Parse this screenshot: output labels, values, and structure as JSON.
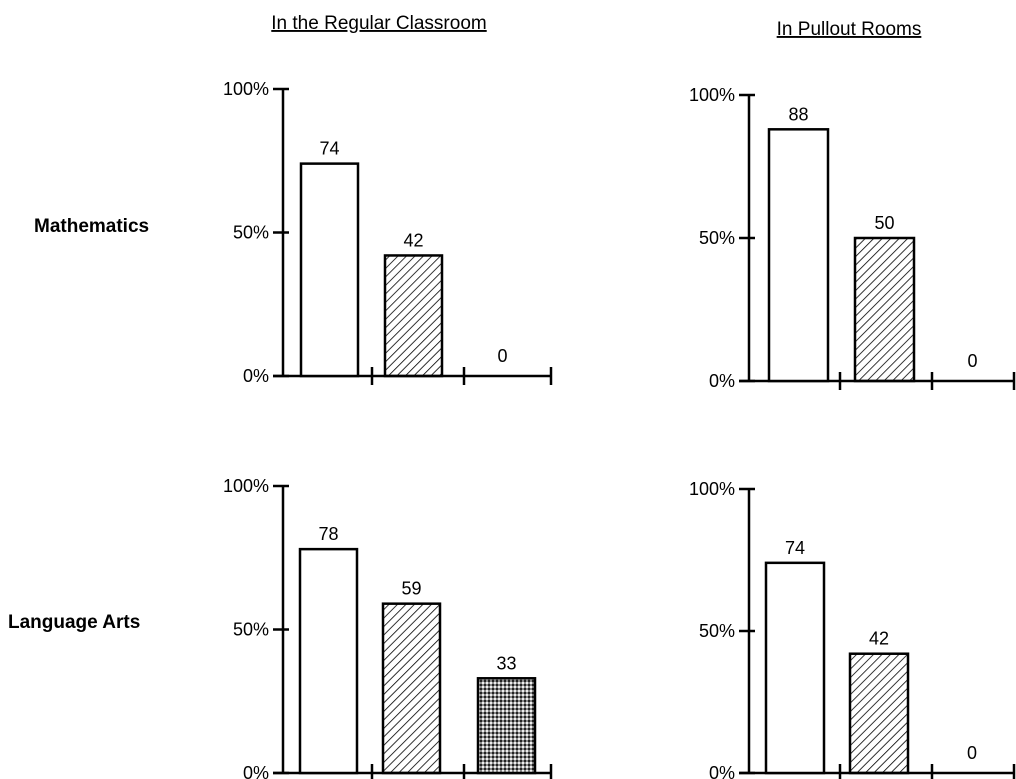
{
  "column_headers": [
    "In the Regular Classroom",
    "In Pullout Rooms"
  ],
  "row_labels": [
    "Mathematics",
    "Language Arts"
  ],
  "chart_data": [
    {
      "type": "bar",
      "subject": "Mathematics",
      "setting": "In the Regular Classroom",
      "yticks": [
        "0%",
        "50%",
        "100%"
      ],
      "ylim": [
        0,
        100
      ],
      "values": [
        74,
        42,
        0
      ],
      "value_labels": [
        "74",
        "42",
        "0"
      ],
      "patterns": [
        "white",
        "hatch",
        "dots"
      ]
    },
    {
      "type": "bar",
      "subject": "Mathematics",
      "setting": "In Pullout Rooms",
      "yticks": [
        "0%",
        "50%",
        "100%"
      ],
      "ylim": [
        0,
        100
      ],
      "values": [
        88,
        50,
        0
      ],
      "value_labels": [
        "88",
        "50",
        "0"
      ],
      "patterns": [
        "white",
        "hatch",
        "dots"
      ]
    },
    {
      "type": "bar",
      "subject": "Language Arts",
      "setting": "In the Regular Classroom",
      "yticks": [
        "0%",
        "50%",
        "100%"
      ],
      "ylim": [
        0,
        100
      ],
      "values": [
        78,
        59,
        33
      ],
      "value_labels": [
        "78",
        "59",
        "33"
      ],
      "patterns": [
        "white",
        "hatch",
        "dots"
      ]
    },
    {
      "type": "bar",
      "subject": "Language Arts",
      "setting": "In Pullout Rooms",
      "yticks": [
        "0%",
        "50%",
        "100%"
      ],
      "ylim": [
        0,
        100
      ],
      "values": [
        74,
        42,
        0
      ],
      "value_labels": [
        "74",
        "42",
        "0"
      ],
      "patterns": [
        "white",
        "hatch",
        "dots"
      ]
    }
  ]
}
